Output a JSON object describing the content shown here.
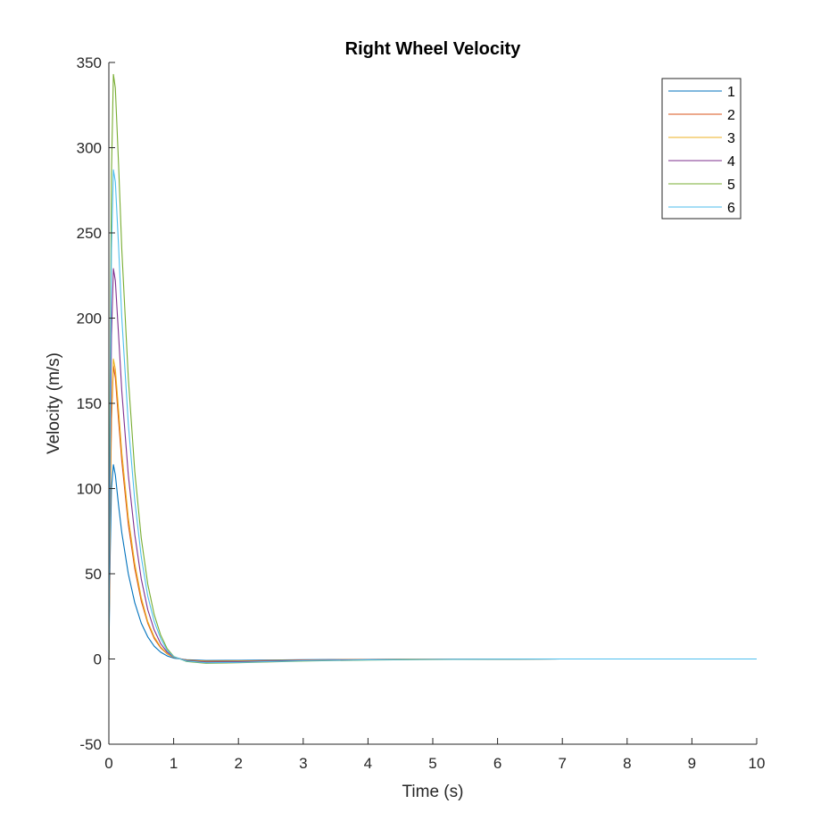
{
  "chart_data": {
    "type": "line",
    "title": "Right Wheel Velocity",
    "xlabel": "Time (s)",
    "ylabel": "Velocity (m/s)",
    "xlim": [
      0,
      10
    ],
    "ylim": [
      -50,
      350
    ],
    "xticks": [
      0,
      1,
      2,
      3,
      4,
      5,
      6,
      7,
      8,
      9,
      10
    ],
    "yticks": [
      -50,
      0,
      50,
      100,
      150,
      200,
      250,
      300,
      350
    ],
    "grid": false,
    "legend_position": "top-right",
    "series": [
      {
        "name": "1",
        "color": "#0072BD",
        "x": [
          0,
          0.02,
          0.04,
          0.07,
          0.1,
          0.15,
          0.2,
          0.3,
          0.4,
          0.5,
          0.6,
          0.7,
          0.8,
          0.9,
          1.0,
          1.2,
          1.5,
          2,
          3,
          4,
          5,
          7,
          10
        ],
        "y": [
          0,
          60,
          100,
          114,
          108,
          90,
          74,
          50,
          33,
          21,
          13,
          7.5,
          4,
          1.8,
          0.5,
          -0.4,
          -0.9,
          -0.8,
          -0.4,
          -0.2,
          -0.1,
          0,
          0
        ]
      },
      {
        "name": "2",
        "color": "#D95319",
        "x": [
          0,
          0.02,
          0.04,
          0.07,
          0.1,
          0.15,
          0.2,
          0.3,
          0.4,
          0.5,
          0.6,
          0.7,
          0.8,
          0.9,
          1.0,
          1.2,
          1.5,
          2,
          3,
          4,
          5,
          7,
          10
        ],
        "y": [
          0,
          80,
          140,
          172,
          165,
          140,
          116,
          79,
          53,
          34,
          21,
          12,
          6.5,
          3,
          1,
          -0.7,
          -1.3,
          -1.2,
          -0.6,
          -0.3,
          -0.1,
          0,
          0
        ]
      },
      {
        "name": "3",
        "color": "#EDB120",
        "x": [
          0,
          0.02,
          0.04,
          0.07,
          0.1,
          0.15,
          0.2,
          0.3,
          0.4,
          0.5,
          0.6,
          0.7,
          0.8,
          0.9,
          1.0,
          1.2,
          1.5,
          2,
          3,
          4,
          5,
          7,
          10
        ],
        "y": [
          0,
          85,
          145,
          176,
          170,
          146,
          121,
          83,
          56,
          36,
          22,
          13,
          7,
          3.2,
          1,
          -0.8,
          -1.4,
          -1.3,
          -0.7,
          -0.3,
          -0.1,
          0,
          0
        ]
      },
      {
        "name": "4",
        "color": "#7E2F8E",
        "x": [
          0,
          0.02,
          0.04,
          0.07,
          0.1,
          0.15,
          0.2,
          0.3,
          0.4,
          0.5,
          0.6,
          0.7,
          0.8,
          0.9,
          1.0,
          1.2,
          1.5,
          2,
          3,
          4,
          5,
          7,
          10
        ],
        "y": [
          0,
          110,
          190,
          229,
          222,
          190,
          157,
          108,
          73,
          47,
          29,
          17,
          9,
          4,
          1.2,
          -1,
          -1.8,
          -1.6,
          -0.8,
          -0.4,
          -0.2,
          0,
          0
        ]
      },
      {
        "name": "5",
        "color": "#77AC30",
        "x": [
          0,
          0.02,
          0.04,
          0.07,
          0.1,
          0.15,
          0.2,
          0.3,
          0.4,
          0.5,
          0.6,
          0.7,
          0.8,
          0.9,
          1.0,
          1.2,
          1.5,
          2,
          3,
          4,
          5,
          7,
          10
        ],
        "y": [
          0,
          165,
          285,
          343,
          335,
          290,
          240,
          165,
          110,
          71,
          44,
          26,
          14,
          6,
          1.5,
          -1.5,
          -2.5,
          -2.2,
          -1.2,
          -0.6,
          -0.3,
          0,
          0
        ]
      },
      {
        "name": "6",
        "color": "#4DBEEE",
        "x": [
          0,
          0.02,
          0.04,
          0.07,
          0.1,
          0.15,
          0.2,
          0.3,
          0.4,
          0.5,
          0.6,
          0.7,
          0.8,
          0.9,
          1.0,
          1.2,
          1.5,
          2,
          3,
          4,
          5,
          7,
          10
        ],
        "y": [
          0,
          140,
          240,
          287,
          280,
          242,
          200,
          138,
          93,
          60,
          37,
          22,
          12,
          5,
          1.3,
          -1.2,
          -2.2,
          -2,
          -1,
          -0.5,
          -0.2,
          0,
          0
        ]
      }
    ]
  }
}
